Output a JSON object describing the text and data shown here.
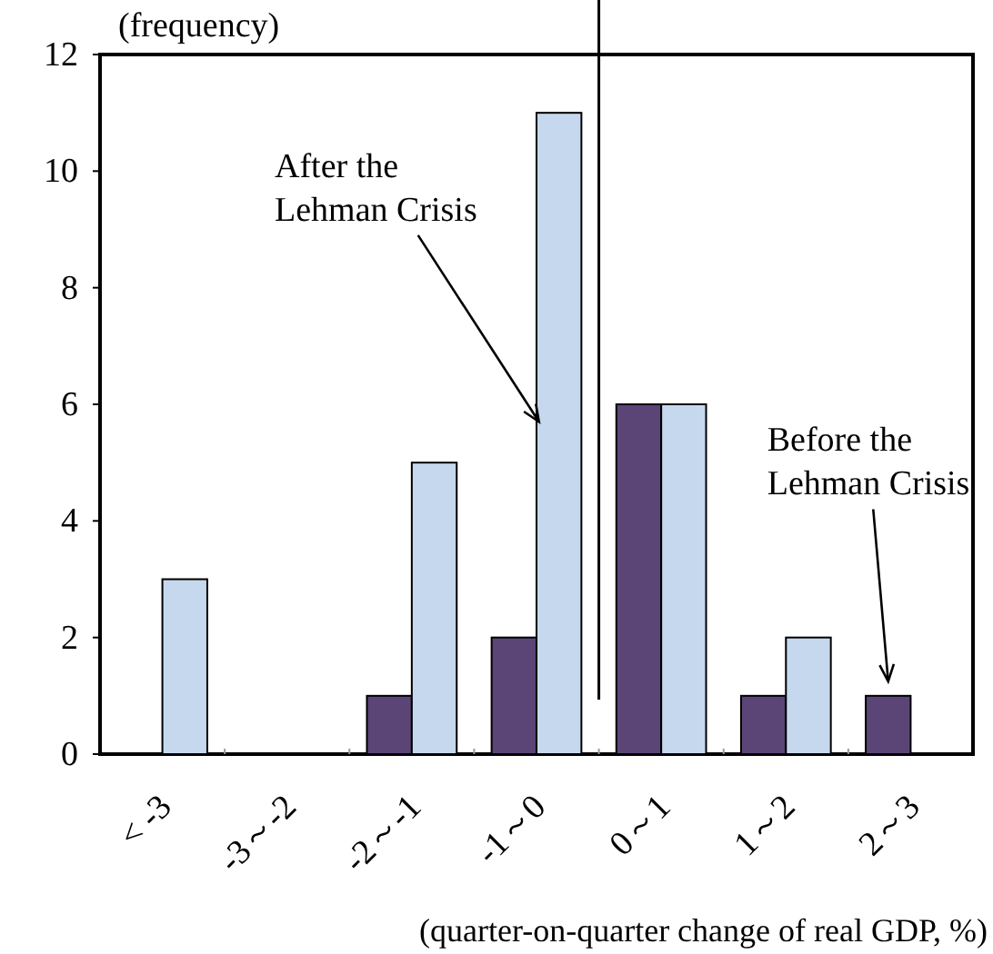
{
  "chart_data": {
    "type": "bar",
    "ylabel": "(frequency)",
    "xlabel": "(quarter-on-quarter change of real GDP, %)",
    "categories": [
      "< -3",
      "-3～-2",
      "-2～-1",
      "-1～0",
      "0～1",
      "1～2",
      "2～3"
    ],
    "series": [
      {
        "color": "#5b4577",
        "values": [
          0,
          0,
          1,
          2,
          6,
          1,
          1
        ]
      },
      {
        "color": "#c5d8ee",
        "values": [
          3,
          0,
          5,
          11,
          6,
          2,
          0
        ]
      }
    ],
    "ylim": [
      0,
      12
    ],
    "yticks": [
      0,
      2,
      4,
      6,
      8,
      10,
      12
    ],
    "grid": false,
    "annotations": [
      {
        "text": "After the\nLehman Crisis",
        "x": "-1～0",
        "y": 5.7
      },
      "Before the\nLehman Crisis"
    ]
  }
}
